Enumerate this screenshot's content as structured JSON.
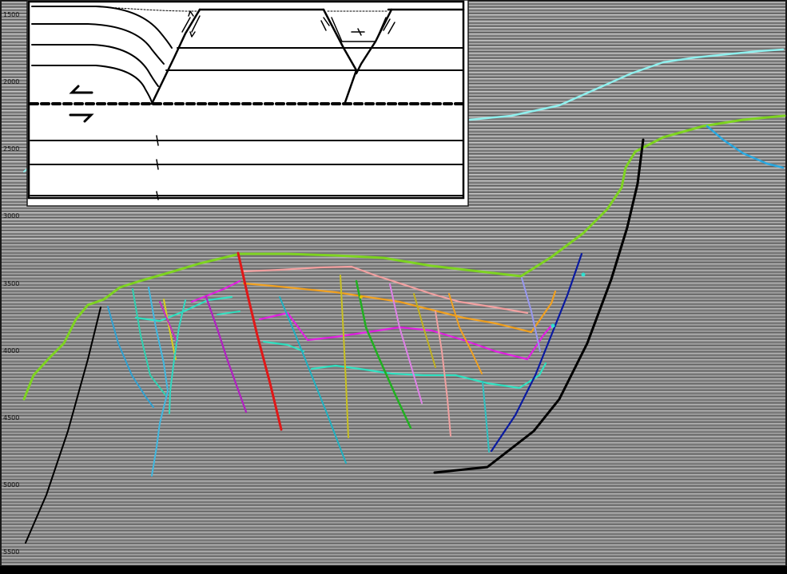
{
  "depth_axis": {
    "ticks": [
      "1500",
      "2000",
      "2500",
      "3000",
      "3500",
      "4000",
      "4500",
      "5000",
      "5500"
    ]
  },
  "colors": {
    "background": "#8e8e8e",
    "border": "#1a1a1a",
    "horizon_cyan": "#8ff0ee",
    "horizon_green": "#7ed321",
    "horizon_pink": "#f2a0a0",
    "horizon_orange": "#f0a020",
    "horizon_magenta": "#e020e0",
    "horizon_teal": "#30e0c0",
    "fault_black": "#000000",
    "fault_red": "#e01818",
    "fault_blue": "#0a1aa0"
  },
  "inset": {
    "description_icon": "structural-cartoon-inset"
  }
}
